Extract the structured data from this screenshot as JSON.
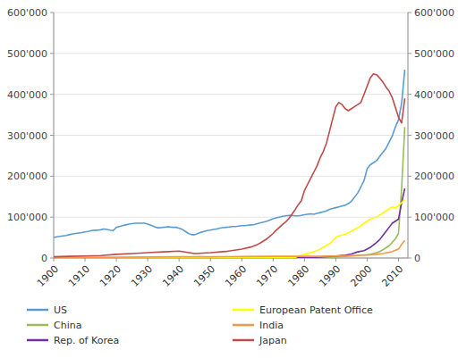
{
  "chart_data": {
    "type": "line",
    "xlim": [
      1900,
      2013
    ],
    "xticks": [
      1900,
      1910,
      1920,
      1930,
      1940,
      1950,
      1960,
      1970,
      1980,
      1990,
      2000,
      2010
    ],
    "ylim": [
      0,
      600000
    ],
    "yticks": [
      0,
      {
        "value": 100000,
        "label": "100'000"
      },
      {
        "value": 200000,
        "label": "200'000"
      },
      {
        "value": 300000,
        "label": "300'000"
      },
      {
        "value": 400000,
        "label": "400'000"
      },
      {
        "value": 500000,
        "label": "500'000"
      },
      {
        "value": 600000,
        "label": "600'000"
      }
    ],
    "y2lim": [
      0,
      600000
    ],
    "y2ticks": [
      0,
      {
        "value": 100000,
        "label": "100'000"
      },
      {
        "value": 200000,
        "label": "200'000"
      },
      {
        "value": 300000,
        "label": "300'000"
      },
      {
        "value": 400000,
        "label": "400'000"
      },
      {
        "value": 500000,
        "label": "500'000"
      },
      {
        "value": 600000,
        "label": "600'000"
      }
    ],
    "grid": true,
    "legend": "bottom",
    "series": [
      {
        "name": "US",
        "color": "#5b9bd5",
        "x": [
          1900,
          1901,
          1902,
          1903,
          1904,
          1905,
          1906,
          1907,
          1908,
          1909,
          1910,
          1911,
          1912,
          1913,
          1914,
          1915,
          1916,
          1917,
          1918,
          1919,
          1920,
          1921,
          1922,
          1923,
          1924,
          1925,
          1926,
          1927,
          1928,
          1929,
          1930,
          1931,
          1932,
          1933,
          1934,
          1935,
          1936,
          1937,
          1938,
          1939,
          1940,
          1941,
          1942,
          1943,
          1944,
          1945,
          1946,
          1947,
          1948,
          1949,
          1950,
          1951,
          1952,
          1953,
          1954,
          1955,
          1956,
          1957,
          1958,
          1959,
          1960,
          1961,
          1962,
          1963,
          1964,
          1965,
          1966,
          1967,
          1968,
          1969,
          1970,
          1971,
          1972,
          1973,
          1974,
          1975,
          1976,
          1977,
          1978,
          1979,
          1980,
          1981,
          1982,
          1983,
          1984,
          1985,
          1986,
          1987,
          1988,
          1989,
          1990,
          1991,
          1992,
          1993,
          1994,
          1995,
          1996,
          1997,
          1998,
          1999,
          2000,
          2001,
          2002,
          2003,
          2004,
          2005,
          2006,
          2007,
          2008,
          2009,
          2010,
          2011,
          2012
        ],
        "values": [
          50000,
          52000,
          53000,
          54000,
          55000,
          57000,
          59000,
          60000,
          61000,
          62000,
          64000,
          65000,
          67000,
          68000,
          68000,
          69000,
          71000,
          70000,
          68000,
          67000,
          75000,
          77000,
          79000,
          81000,
          83000,
          84000,
          85000,
          85000,
          85000,
          85000,
          83000,
          80000,
          77000,
          74000,
          74000,
          75000,
          76000,
          76000,
          75000,
          75000,
          73000,
          70000,
          65000,
          60000,
          57000,
          57000,
          60000,
          63000,
          65000,
          67000,
          68000,
          70000,
          71000,
          73000,
          74000,
          75000,
          76000,
          77000,
          77000,
          78000,
          79000,
          79000,
          80000,
          81000,
          82000,
          84000,
          86000,
          88000,
          90000,
          93000,
          96000,
          98000,
          100000,
          102000,
          103000,
          104000,
          104000,
          103000,
          103000,
          104000,
          106000,
          107000,
          108000,
          107000,
          109000,
          111000,
          113000,
          115000,
          119000,
          121000,
          123000,
          125000,
          127000,
          129000,
          133000,
          139000,
          149000,
          159000,
          174000,
          189000,
          218000,
          228000,
          233000,
          238000,
          248000,
          258000,
          268000,
          283000,
          298000,
          320000,
          338000,
          378000,
          460000
        ]
      },
      {
        "name": "China",
        "color": "#9bbb59",
        "x": [
          1900,
          1985,
          1990,
          1995,
          1998,
          2000,
          2001,
          2002,
          2003,
          2004,
          2005,
          2006,
          2007,
          2008,
          2009,
          2010,
          2011,
          2012
        ],
        "values": [
          0,
          1000,
          2500,
          5000,
          7000,
          8000,
          9000,
          11000,
          13000,
          16000,
          20000,
          25000,
          30000,
          38000,
          47000,
          60000,
          170000,
          320000
        ]
      },
      {
        "name": "Rep. of Korea",
        "color": "#7030a0",
        "x": [
          1900,
          1979,
          1980,
          1983,
          1985,
          1988,
          1990,
          1993,
          1995,
          1997,
          1999,
          2000,
          2001,
          2002,
          2003,
          2004,
          2005,
          2006,
          2007,
          2008,
          2009,
          2010,
          2011,
          2012
        ],
        "values": [
          0,
          500,
          1000,
          1500,
          2500,
          4000,
          5000,
          7000,
          10000,
          15000,
          18000,
          22000,
          26000,
          32000,
          38000,
          45000,
          55000,
          65000,
          75000,
          85000,
          90000,
          95000,
          135000,
          170000
        ]
      },
      {
        "name": "European Patent Office",
        "color": "#ffff00",
        "x": [
          1900,
          1977,
          1978,
          1980,
          1983,
          1985,
          1988,
          1990,
          1991,
          1992,
          1993,
          1994,
          1995,
          1996,
          1997,
          1998,
          1999,
          2000,
          2001,
          2002,
          2003,
          2004,
          2005,
          2006,
          2007,
          2008,
          2009,
          2010,
          2011,
          2012
        ],
        "values": [
          0,
          1000,
          5000,
          9000,
          15000,
          22000,
          35000,
          50000,
          54000,
          56000,
          58000,
          62000,
          66000,
          70000,
          74000,
          79000,
          85000,
          90000,
          95000,
          98000,
          100000,
          105000,
          110000,
          115000,
          120000,
          125000,
          122000,
          128000,
          135000,
          143000
        ]
      },
      {
        "name": "India",
        "color": "#f79646",
        "x": [
          1900,
          1910,
          1920,
          1930,
          1940,
          1950,
          1960,
          1970,
          1975,
          1980,
          1985,
          1990,
          1995,
          2000,
          2003,
          2005,
          2007,
          2008,
          2009,
          2010,
          2011,
          2012
        ],
        "values": [
          1000,
          1500,
          2000,
          2500,
          3000,
          3000,
          3500,
          4000,
          4000,
          4000,
          4000,
          5000,
          6000,
          7000,
          9000,
          11000,
          14000,
          16000,
          19000,
          22000,
          33000,
          43000
        ]
      },
      {
        "name": "Japan",
        "color": "#be4b48",
        "x": [
          1900,
          1905,
          1910,
          1915,
          1920,
          1925,
          1930,
          1935,
          1940,
          1945,
          1950,
          1955,
          1960,
          1963,
          1964,
          1965,
          1966,
          1967,
          1968,
          1969,
          1970,
          1971,
          1972,
          1973,
          1974,
          1975,
          1976,
          1977,
          1978,
          1979,
          1980,
          1981,
          1982,
          1983,
          1984,
          1985,
          1986,
          1987,
          1988,
          1989,
          1990,
          1991,
          1992,
          1993,
          1994,
          1995,
          1996,
          1997,
          1998,
          1999,
          2000,
          2001,
          2002,
          2003,
          2004,
          2005,
          2006,
          2007,
          2008,
          2009,
          2010,
          2011,
          2012
        ],
        "values": [
          3000,
          4000,
          5000,
          6000,
          9000,
          11000,
          13000,
          15000,
          17000,
          11000,
          13000,
          16000,
          22000,
          27000,
          30000,
          33000,
          37000,
          42000,
          47000,
          53000,
          60000,
          68000,
          75000,
          82000,
          88000,
          96000,
          107000,
          118000,
          130000,
          140000,
          165000,
          180000,
          195000,
          210000,
          225000,
          245000,
          260000,
          280000,
          310000,
          340000,
          370000,
          380000,
          375000,
          365000,
          360000,
          365000,
          370000,
          375000,
          380000,
          400000,
          420000,
          440000,
          450000,
          448000,
          440000,
          430000,
          418000,
          408000,
          392000,
          368000,
          344000,
          330000,
          390000
        ]
      }
    ]
  }
}
